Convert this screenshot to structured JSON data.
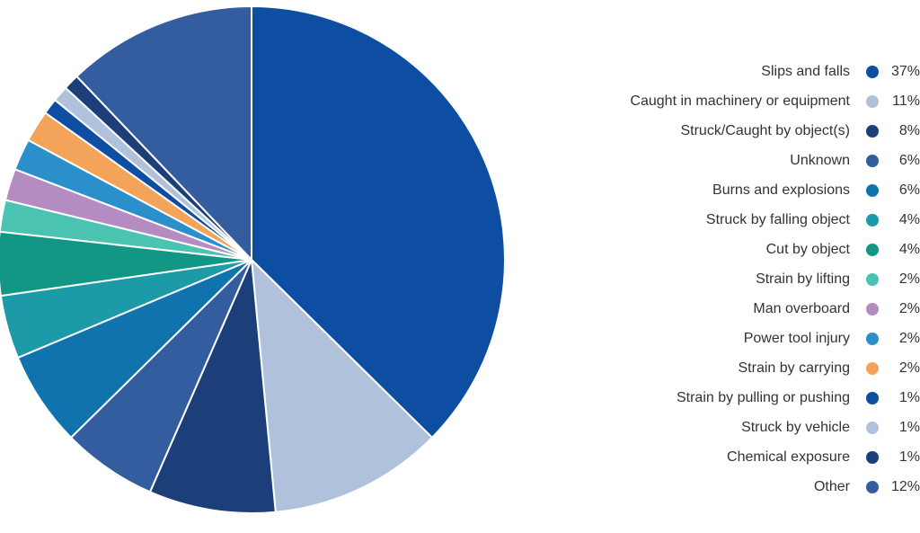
{
  "chart_data": {
    "type": "pie",
    "start_angle_deg": 0,
    "direction": "clockwise",
    "legend_position": "right",
    "slices": [
      {
        "label": "Slips and falls",
        "value": 37,
        "value_label": "37%",
        "color": "#0D4EA2"
      },
      {
        "label": "Caught in machinery or equipment",
        "value": 11,
        "value_label": "11%",
        "color": "#B0C1DB"
      },
      {
        "label": "Struck/Caught by object(s)",
        "value": 8,
        "value_label": "8%",
        "color": "#1C3F7A"
      },
      {
        "label": "Unknown",
        "value": 6,
        "value_label": "6%",
        "color": "#335D9F"
      },
      {
        "label": "Burns and explosions",
        "value": 6,
        "value_label": "6%",
        "color": "#1173AE"
      },
      {
        "label": "Struck by falling object",
        "value": 4,
        "value_label": "4%",
        "color": "#1D9AA7"
      },
      {
        "label": "Cut by object",
        "value": 4,
        "value_label": "4%",
        "color": "#139785"
      },
      {
        "label": "Strain by lifting",
        "value": 2,
        "value_label": "2%",
        "color": "#4AC4B0"
      },
      {
        "label": "Man overboard",
        "value": 2,
        "value_label": "2%",
        "color": "#B48CC1"
      },
      {
        "label": "Power tool injury",
        "value": 2,
        "value_label": "2%",
        "color": "#2A8FCB"
      },
      {
        "label": "Strain by carrying",
        "value": 2,
        "value_label": "2%",
        "color": "#F3A35A"
      },
      {
        "label": "Strain by pulling or pushing",
        "value": 1,
        "value_label": "1%",
        "color": "#0D4EA2"
      },
      {
        "label": "Struck by vehicle",
        "value": 1,
        "value_label": "1%",
        "color": "#B0C1DB"
      },
      {
        "label": "Chemical exposure",
        "value": 1,
        "value_label": "1%",
        "color": "#1C3F7A"
      },
      {
        "label": "Other",
        "value": 12,
        "value_label": "12%",
        "color": "#335D9F"
      }
    ]
  }
}
